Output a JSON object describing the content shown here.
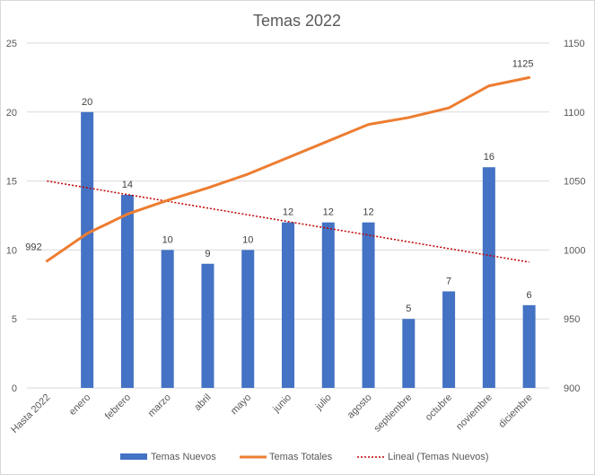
{
  "chart_data": {
    "type": "bar",
    "title": "Temas 2022",
    "categories": [
      "Hasta 2022",
      "enero",
      "febrero",
      "marzo",
      "abril",
      "mayo",
      "junio",
      "julio",
      "agosto",
      "septiembre",
      "octubre",
      "noviembre",
      "diciembre"
    ],
    "series": [
      {
        "name": "Temas Nuevos",
        "type": "bar",
        "axis": "left",
        "color": "#4472C4",
        "values": [
          0,
          20,
          14,
          10,
          9,
          10,
          12,
          12,
          12,
          5,
          7,
          16,
          6
        ],
        "labels": [
          "",
          "20",
          "14",
          "10",
          "9",
          "10",
          "12",
          "12",
          "12",
          "5",
          "7",
          "16",
          "6"
        ]
      },
      {
        "name": "Temas Totales",
        "type": "line",
        "axis": "right",
        "color": "#ED7D31",
        "values": [
          992,
          1012,
          1026,
          1036,
          1045,
          1055,
          1067,
          1079,
          1091,
          1096,
          1103,
          1119,
          1125
        ],
        "labels": [
          "992",
          "",
          "",
          "",
          "",
          "",
          "",
          "",
          "",
          "",
          "",
          "",
          "1125"
        ]
      },
      {
        "name": "Lineal (Temas Nuevos)",
        "type": "trendline",
        "axis": "left",
        "color": "#C00000",
        "values": [
          15.0,
          14.51,
          14.02,
          13.53,
          13.04,
          12.55,
          12.06,
          11.57,
          11.08,
          10.59,
          10.1,
          9.61,
          9.12
        ]
      }
    ],
    "y_left": {
      "min": 0,
      "max": 25,
      "ticks": [
        "0",
        "5",
        "10",
        "15",
        "20",
        "25"
      ]
    },
    "y_right": {
      "min": 900,
      "max": 1150,
      "ticks": [
        "900",
        "950",
        "1000",
        "1050",
        "1100",
        "1150"
      ]
    },
    "grid": true,
    "legend_position": "bottom"
  }
}
